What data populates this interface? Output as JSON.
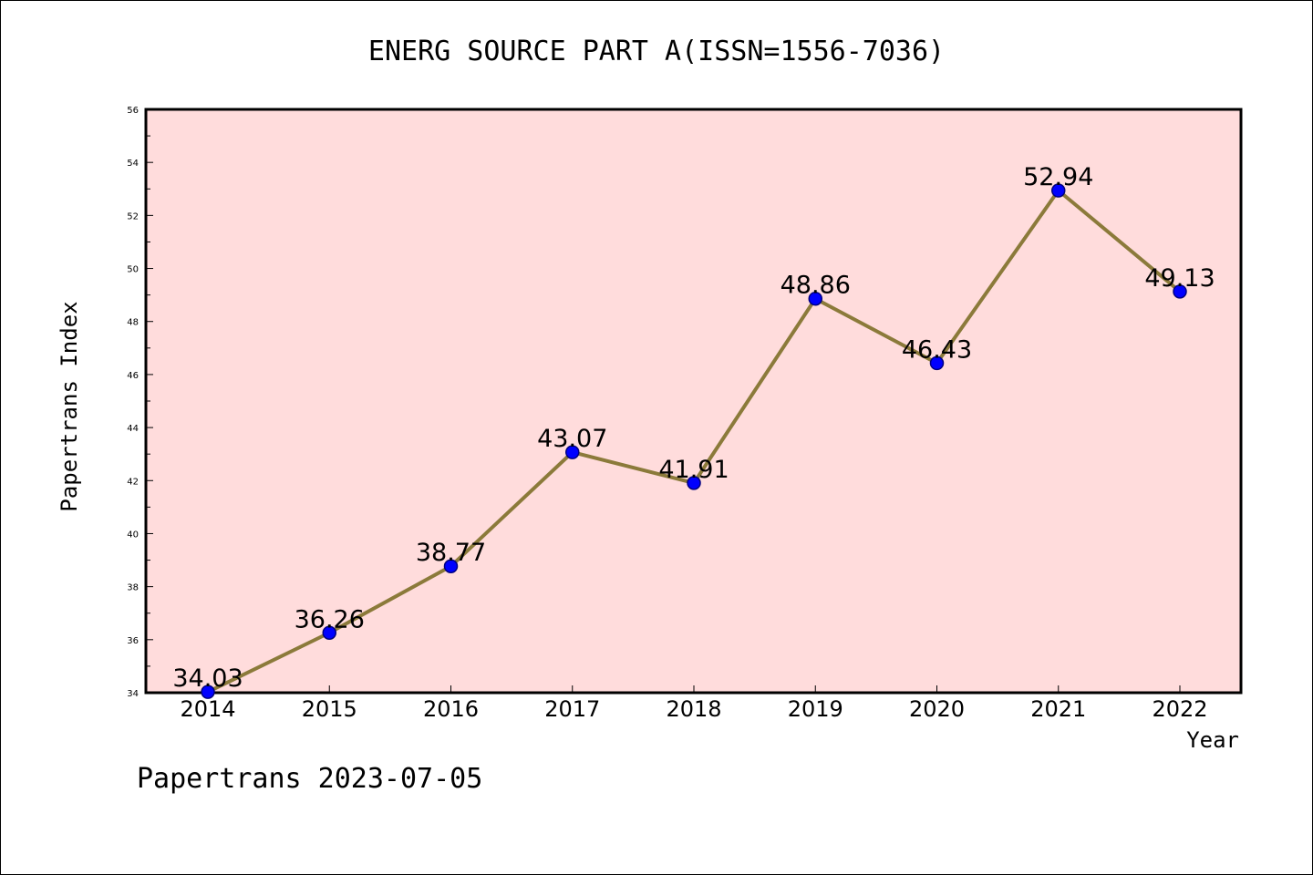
{
  "chart_data": {
    "type": "line",
    "title": "ENERG SOURCE PART A(ISSN=1556-7036)",
    "xlabel": "Year",
    "ylabel": "Papertrans Index",
    "footer": "Papertrans 2023-07-05",
    "categories": [
      "2014",
      "2015",
      "2016",
      "2017",
      "2018",
      "2019",
      "2020",
      "2021",
      "2022"
    ],
    "values": [
      34.03,
      36.26,
      38.77,
      43.07,
      41.91,
      48.86,
      46.43,
      52.94,
      49.13
    ],
    "data_labels": [
      "34.03",
      "36.26",
      "38.77",
      "43.07",
      "41.91",
      "48.86",
      "46.43",
      "52.94",
      "49.13"
    ],
    "ylim": [
      34,
      56
    ],
    "yticks": [
      "34",
      "36",
      "38",
      "40",
      "42",
      "44",
      "46",
      "48",
      "50",
      "52",
      "54",
      "56"
    ],
    "grid": false,
    "legend": "none",
    "colors": {
      "plot_background": "#ffdcdc",
      "line": "#8b7a3a",
      "marker": "#0000ff",
      "marker_edge": "#000080"
    }
  }
}
